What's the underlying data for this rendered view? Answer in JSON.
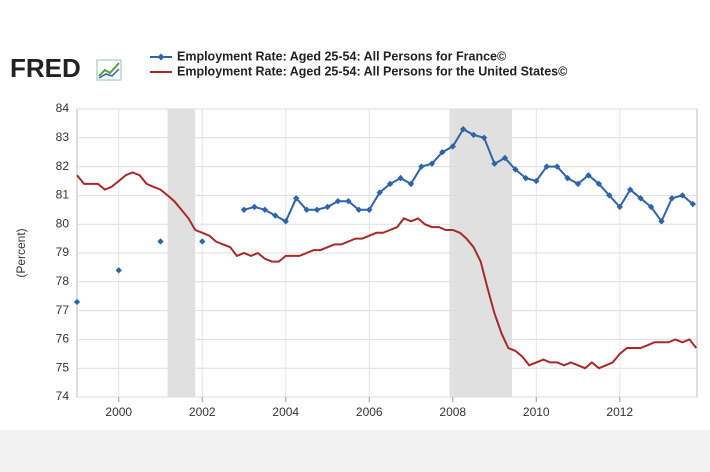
{
  "logo": "FRED",
  "chart_data": {
    "type": "line",
    "y_label": "(Percent)",
    "xlim": [
      1999,
      2013.85
    ],
    "xticks": [
      2000,
      2002,
      2004,
      2006,
      2008,
      2010,
      2012
    ],
    "ylim": [
      74,
      84
    ],
    "yticks": [
      74,
      75,
      76,
      77,
      78,
      79,
      80,
      81,
      82,
      83,
      84
    ],
    "grid": true,
    "recessions": [
      [
        2001.17,
        2001.83
      ],
      [
        2007.92,
        2009.42
      ]
    ],
    "recession_color": "#e0e0e0",
    "series": [
      {
        "name": "Employment Rate: Aged 25-54: All Persons for France©",
        "color": "#2e64a8",
        "marker": "diamond",
        "x": [
          1999,
          2000,
          2001,
          2002,
          2003,
          2003.25,
          2003.5,
          2003.75,
          2004,
          2004.25,
          2004.5,
          2004.75,
          2005,
          2005.25,
          2005.5,
          2005.75,
          2006,
          2006.25,
          2006.5,
          2006.75,
          2007,
          2007.25,
          2007.5,
          2007.75,
          2008,
          2008.25,
          2008.5,
          2008.75,
          2009,
          2009.25,
          2009.5,
          2009.75,
          2010,
          2010.25,
          2010.5,
          2010.75,
          2011,
          2011.25,
          2011.5,
          2011.75,
          2012,
          2012.25,
          2012.5,
          2012.75,
          2013,
          2013.25,
          2013.5,
          2013.75
        ],
        "values": [
          77.3,
          78.4,
          79.4,
          79.4,
          80.5,
          80.6,
          80.5,
          80.3,
          80.1,
          80.9,
          80.5,
          80.5,
          80.6,
          80.8,
          80.8,
          80.5,
          80.5,
          81.1,
          81.4,
          81.6,
          81.4,
          82.0,
          82.1,
          82.5,
          82.7,
          83.3,
          83.1,
          83.0,
          82.1,
          82.3,
          81.9,
          81.6,
          81.5,
          82.0,
          82.0,
          81.6,
          81.4,
          81.7,
          81.4,
          81.0,
          80.6,
          81.2,
          80.9,
          80.6,
          80.1,
          80.9,
          81.0,
          80.7
        ]
      },
      {
        "name": "Employment Rate: Aged 25-54: All Persons for the United States©",
        "color": "#a52a2a",
        "marker": "none",
        "x": [
          1999,
          1999.17,
          1999.33,
          1999.5,
          1999.67,
          1999.83,
          2000,
          2000.17,
          2000.33,
          2000.5,
          2000.67,
          2000.83,
          2001,
          2001.17,
          2001.33,
          2001.5,
          2001.67,
          2001.83,
          2002,
          2002.17,
          2002.33,
          2002.5,
          2002.67,
          2002.83,
          2003,
          2003.17,
          2003.33,
          2003.5,
          2003.67,
          2003.83,
          2004,
          2004.17,
          2004.33,
          2004.5,
          2004.67,
          2004.83,
          2005,
          2005.17,
          2005.33,
          2005.5,
          2005.67,
          2005.83,
          2006,
          2006.17,
          2006.33,
          2006.5,
          2006.67,
          2006.83,
          2007,
          2007.17,
          2007.33,
          2007.5,
          2007.67,
          2007.83,
          2008,
          2008.17,
          2008.33,
          2008.5,
          2008.67,
          2008.83,
          2009,
          2009.17,
          2009.33,
          2009.5,
          2009.67,
          2009.83,
          2010,
          2010.17,
          2010.33,
          2010.5,
          2010.67,
          2010.83,
          2011,
          2011.17,
          2011.33,
          2011.5,
          2011.67,
          2011.83,
          2012,
          2012.17,
          2012.33,
          2012.5,
          2012.67,
          2012.83,
          2013,
          2013.17,
          2013.33,
          2013.5,
          2013.67,
          2013.83
        ],
        "values": [
          81.7,
          81.4,
          81.4,
          81.4,
          81.2,
          81.3,
          81.5,
          81.7,
          81.8,
          81.7,
          81.4,
          81.3,
          81.2,
          81.0,
          80.8,
          80.5,
          80.2,
          79.8,
          79.7,
          79.6,
          79.4,
          79.3,
          79.2,
          78.9,
          79.0,
          78.9,
          79.0,
          78.8,
          78.7,
          78.7,
          78.9,
          78.9,
          78.9,
          79.0,
          79.1,
          79.1,
          79.2,
          79.3,
          79.3,
          79.4,
          79.5,
          79.5,
          79.6,
          79.7,
          79.7,
          79.8,
          79.9,
          80.2,
          80.1,
          80.2,
          80.0,
          79.9,
          79.9,
          79.8,
          79.8,
          79.7,
          79.5,
          79.2,
          78.7,
          77.8,
          76.9,
          76.2,
          75.7,
          75.6,
          75.4,
          75.1,
          75.2,
          75.3,
          75.2,
          75.2,
          75.1,
          75.2,
          75.1,
          75.0,
          75.2,
          75.0,
          75.1,
          75.2,
          75.5,
          75.7,
          75.7,
          75.7,
          75.8,
          75.9,
          75.9,
          75.9,
          76.0,
          75.9,
          76.0,
          75.7
        ]
      }
    ]
  }
}
